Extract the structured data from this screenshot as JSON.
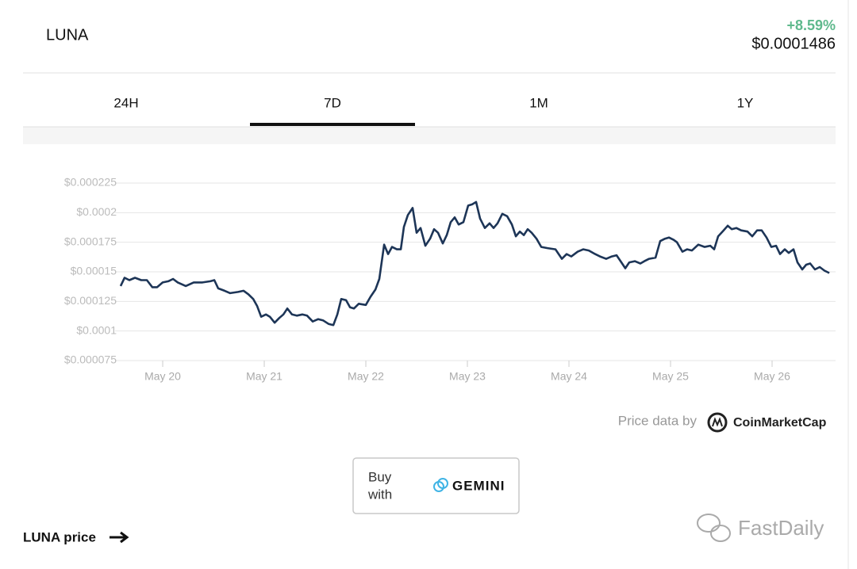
{
  "header": {
    "name": "LUNA",
    "change": "+8.59%",
    "price": "$0.0001486"
  },
  "tabs": [
    "24H",
    "7D",
    "1M",
    "1Y"
  ],
  "chart_data": {
    "type": "line",
    "color": "#1d3557",
    "grid": true,
    "xlim": [
      19.531,
      26.625
    ],
    "xticks": [
      {
        "value": 20,
        "label": "May 20"
      },
      {
        "value": 21,
        "label": "May 21"
      },
      {
        "value": 22,
        "label": "May 22"
      },
      {
        "value": 23,
        "label": "May 23"
      },
      {
        "value": 24,
        "label": "May 24"
      },
      {
        "value": 25,
        "label": "May 25"
      },
      {
        "value": 26,
        "label": "May 26"
      }
    ],
    "ylim": [
      7.5e-05,
      0.000225
    ],
    "yticks": [
      {
        "value": 7.5e-05,
        "label": "$0.000075"
      },
      {
        "value": 0.0001,
        "label": "$0.0001"
      },
      {
        "value": 0.000125,
        "label": "$0.000125"
      },
      {
        "value": 0.00015,
        "label": "$0.00015"
      },
      {
        "value": 0.000175,
        "label": "$0.000175"
      },
      {
        "value": 0.0002,
        "label": "$0.0002"
      },
      {
        "value": 0.000225,
        "label": "$0.000225"
      }
    ],
    "x": [
      19.586,
      19.625,
      19.672,
      19.727,
      19.789,
      19.844,
      19.898,
      19.945,
      20.0,
      20.055,
      20.102,
      20.148,
      20.227,
      20.305,
      20.391,
      20.469,
      20.508,
      20.547,
      20.609,
      20.664,
      20.742,
      20.797,
      20.844,
      20.891,
      20.93,
      20.969,
      21.016,
      21.055,
      21.102,
      21.148,
      21.188,
      21.227,
      21.273,
      21.32,
      21.375,
      21.422,
      21.477,
      21.531,
      21.578,
      21.633,
      21.68,
      21.719,
      21.758,
      21.805,
      21.844,
      21.883,
      21.93,
      22.0,
      22.047,
      22.094,
      22.133,
      22.18,
      22.219,
      22.258,
      22.305,
      22.344,
      22.375,
      22.414,
      22.461,
      22.5,
      22.539,
      22.586,
      22.633,
      22.672,
      22.711,
      22.758,
      22.797,
      22.836,
      22.875,
      22.914,
      22.961,
      23.008,
      23.047,
      23.086,
      23.125,
      23.172,
      23.219,
      23.258,
      23.297,
      23.344,
      23.391,
      23.438,
      23.477,
      23.516,
      23.555,
      23.594,
      23.633,
      23.68,
      23.727,
      23.789,
      23.867,
      23.93,
      23.977,
      24.023,
      24.086,
      24.141,
      24.195,
      24.258,
      24.305,
      24.367,
      24.422,
      24.469,
      24.516,
      24.555,
      24.594,
      24.648,
      24.703,
      24.742,
      24.789,
      24.852,
      24.898,
      24.945,
      24.984,
      25.031,
      25.063,
      25.117,
      25.164,
      25.211,
      25.273,
      25.336,
      25.391,
      25.43,
      25.469,
      25.523,
      25.563,
      25.602,
      25.648,
      25.695,
      25.758,
      25.805,
      25.852,
      25.898,
      25.945,
      25.992,
      26.039,
      26.078,
      26.125,
      26.164,
      26.211,
      26.25,
      26.297,
      26.336,
      26.375,
      26.422,
      26.469,
      26.516,
      26.563
    ],
    "values": [
      0.000138,
      0.000145,
      0.000143,
      0.000145,
      0.000143,
      0.000143,
      0.000137,
      0.000137,
      0.000141,
      0.000142,
      0.000144,
      0.000141,
      0.000138,
      0.000141,
      0.000141,
      0.000142,
      0.000143,
      0.000136,
      0.000134,
      0.000132,
      0.000133,
      0.000134,
      0.000131,
      0.000127,
      0.000121,
      0.000112,
      0.000114,
      0.000112,
      0.000107,
      0.000111,
      0.000114,
      0.000119,
      0.000114,
      0.000113,
      0.000114,
      0.000113,
      0.000108,
      0.00011,
      0.000109,
      0.000106,
      0.000105,
      0.000114,
      0.000127,
      0.000126,
      0.00012,
      0.000119,
      0.000123,
      0.000122,
      0.000129,
      0.000135,
      0.000144,
      0.000173,
      0.000165,
      0.000171,
      0.000169,
      0.000169,
      0.000188,
      0.000198,
      0.000204,
      0.000183,
      0.000187,
      0.000172,
      0.000178,
      0.000186,
      0.000183,
      0.000174,
      0.000181,
      0.000192,
      0.000196,
      0.00019,
      0.000192,
      0.000206,
      0.000207,
      0.000209,
      0.000195,
      0.000187,
      0.000191,
      0.000187,
      0.000191,
      0.000199,
      0.000197,
      0.00019,
      0.00018,
      0.000184,
      0.000181,
      0.000186,
      0.000183,
      0.000178,
      0.000171,
      0.00017,
      0.000169,
      0.000161,
      0.000165,
      0.000163,
      0.000167,
      0.000169,
      0.000168,
      0.000165,
      0.000163,
      0.000161,
      0.000163,
      0.000164,
      0.000158,
      0.000153,
      0.000158,
      0.000159,
      0.000157,
      0.000159,
      0.000161,
      0.000162,
      0.000176,
      0.000178,
      0.000179,
      0.000177,
      0.000175,
      0.000167,
      0.000169,
      0.000168,
      0.000173,
      0.000171,
      0.000172,
      0.000169,
      0.00018,
      0.000185,
      0.000189,
      0.000186,
      0.000187,
      0.000185,
      0.000184,
      0.00018,
      0.000185,
      0.000185,
      0.000179,
      0.000171,
      0.000172,
      0.000165,
      0.000169,
      0.000166,
      0.000169,
      0.000158,
      0.000152,
      0.000156,
      0.000157,
      0.000152,
      0.000154,
      0.000151,
      0.000149
    ]
  },
  "attribution": {
    "prefix": "Price data by",
    "brand": "CoinMarketCap"
  },
  "buy_button": {
    "line1": "Buy",
    "line2": "with",
    "brand": "GEMINI"
  },
  "footer_link": "LUNA price",
  "watermark": "FastDaily"
}
